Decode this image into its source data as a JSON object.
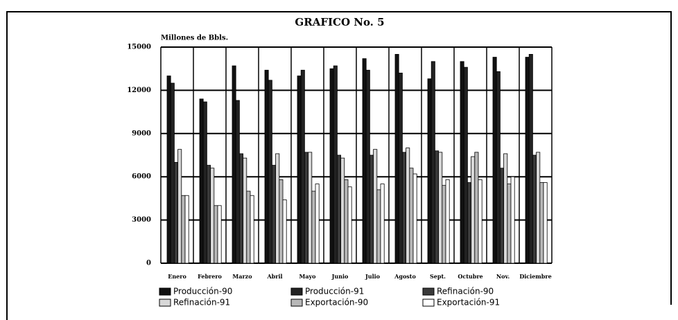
{
  "chart_data": {
    "type": "bar",
    "title": "GRAFICO No. 5",
    "y_label": "Millones de Bbls.",
    "categories": [
      "Enero",
      "Febrero",
      "Marzo",
      "Abril",
      "Mayo",
      "Junio",
      "Julio",
      "Agosto",
      "Sept.",
      "Octubre",
      "Nov.",
      "Diciembre"
    ],
    "series": [
      {
        "name": "Producción-90",
        "color": "#111111",
        "values": [
          13000,
          11400,
          13700,
          13400,
          13000,
          13500,
          14200,
          14500,
          12800,
          14000,
          14300,
          14300
        ]
      },
      {
        "name": "Producción-91",
        "color": "#222222",
        "values": [
          12500,
          11200,
          11300,
          12700,
          13400,
          13700,
          13400,
          13200,
          14000,
          13600,
          13300,
          14500
        ]
      },
      {
        "name": "Refinación-90",
        "color": "#3a3a3a",
        "values": [
          7000,
          6800,
          7600,
          6800,
          7700,
          7500,
          7500,
          7700,
          7800,
          5600,
          6600,
          7500
        ]
      },
      {
        "name": "Refinación-91",
        "color": "#d8d8d8",
        "values": [
          7900,
          6600,
          7300,
          7600,
          7700,
          7300,
          7900,
          8000,
          7700,
          7400,
          7600,
          7700
        ]
      },
      {
        "name": "Exportación-90",
        "color": "#b8b8b8",
        "values": [
          4700,
          4000,
          5000,
          5800,
          5000,
          5800,
          5100,
          6600,
          5400,
          7700,
          5500,
          5600
        ]
      },
      {
        "name": "Exportación-91",
        "color": "#ffffff",
        "values": [
          4700,
          4000,
          4700,
          4400,
          5500,
          5300,
          5500,
          6200,
          5800,
          5800,
          6000,
          5600
        ]
      }
    ],
    "ylim": [
      0,
      15000
    ],
    "yticks": [
      0,
      3000,
      6000,
      9000,
      12000,
      15000
    ],
    "grid": true
  }
}
